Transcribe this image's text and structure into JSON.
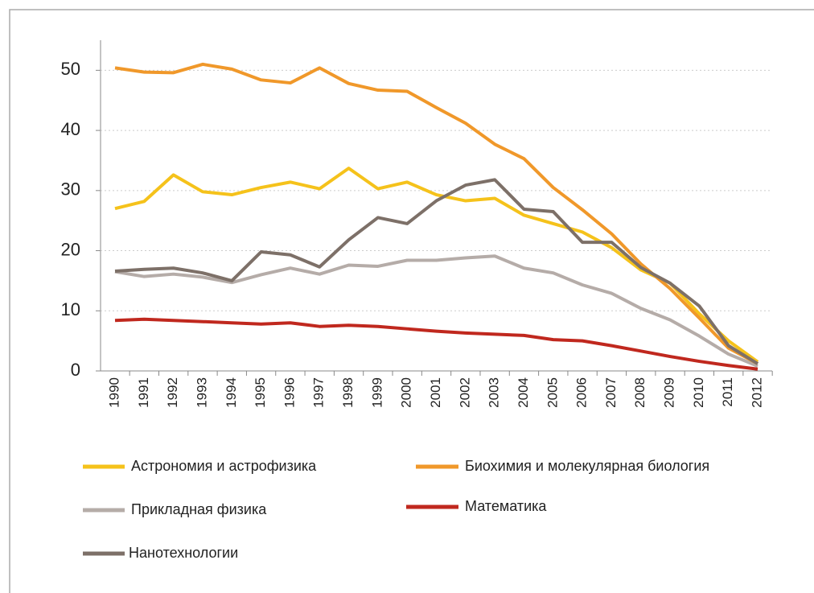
{
  "chart_data": {
    "type": "line",
    "categories": [
      "1990",
      "1991",
      "1992",
      "1993",
      "1994",
      "1995",
      "1996",
      "1997",
      "1998",
      "1999",
      "2000",
      "2001",
      "2002",
      "2003",
      "2004",
      "2005",
      "2006",
      "2007",
      "2008",
      "2009",
      "2010",
      "2011",
      "2012"
    ],
    "series": [
      {
        "name": "Астрономия и астрофизика",
        "color": "#f5c21b",
        "values": [
          27,
          28.2,
          32.6,
          29.8,
          29.3,
          30.5,
          31.4,
          30.3,
          33.7,
          30.3,
          31.4,
          29.3,
          28.3,
          28.7,
          25.9,
          24.5,
          23.1,
          20.5,
          16.8,
          14.6,
          9.5,
          5,
          1.5
        ]
      },
      {
        "name": "Биохимия и молекулярная биология",
        "color": "#f0982a",
        "values": [
          50.4,
          49.7,
          49.6,
          51,
          50.2,
          48.4,
          47.9,
          50.4,
          47.8,
          46.7,
          46.5,
          43.8,
          41.2,
          37.7,
          35.3,
          30.5,
          26.8,
          22.8,
          17.8,
          13.7,
          8.8,
          3.8,
          1.2
        ]
      },
      {
        "name": "Прикладная физика",
        "color": "#b5aca8",
        "values": [
          16.5,
          15.7,
          16.1,
          15.6,
          14.7,
          16,
          17.1,
          16.1,
          17.6,
          17.4,
          18.4,
          18.4,
          18.8,
          19.1,
          17.1,
          16.3,
          14.3,
          12.9,
          10.4,
          8.5,
          5.8,
          2.8,
          0.8
        ]
      },
      {
        "name": "Математика",
        "color": "#c0281e",
        "values": [
          8.4,
          8.6,
          8.4,
          8.2,
          8,
          7.8,
          8,
          7.4,
          7.6,
          7.4,
          7,
          6.6,
          6.3,
          6.1,
          5.9,
          5.2,
          5,
          4.2,
          3.3,
          2.4,
          1.6,
          0.9,
          0.3
        ]
      },
      {
        "name": "Нанотехнологии",
        "color": "#7d7068",
        "values": [
          16.6,
          16.9,
          17.1,
          16.3,
          15,
          19.8,
          19.3,
          17.3,
          21.8,
          25.5,
          24.5,
          28.3,
          30.9,
          31.8,
          26.9,
          26.5,
          21.4,
          21.4,
          17.2,
          14.6,
          10.8,
          4.2,
          1.2
        ]
      }
    ],
    "ylim": [
      0,
      55
    ],
    "yticks": [
      0,
      10,
      20,
      30,
      40,
      50
    ],
    "grid": true
  }
}
